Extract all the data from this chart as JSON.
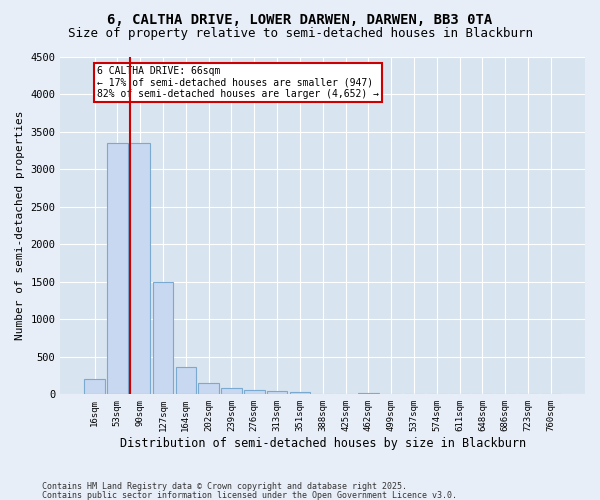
{
  "title1": "6, CALTHA DRIVE, LOWER DARWEN, DARWEN, BB3 0TA",
  "title2": "Size of property relative to semi-detached houses in Blackburn",
  "xlabel": "Distribution of semi-detached houses by size in Blackburn",
  "ylabel": "Number of semi-detached properties",
  "categories": [
    "16sqm",
    "53sqm",
    "90sqm",
    "127sqm",
    "164sqm",
    "202sqm",
    "239sqm",
    "276sqm",
    "313sqm",
    "351sqm",
    "388sqm",
    "425sqm",
    "462sqm",
    "499sqm",
    "537sqm",
    "574sqm",
    "611sqm",
    "648sqm",
    "686sqm",
    "723sqm",
    "760sqm"
  ],
  "values": [
    200,
    3350,
    3350,
    1500,
    360,
    150,
    90,
    60,
    40,
    25,
    0,
    0,
    20,
    0,
    0,
    0,
    0,
    0,
    0,
    0,
    0
  ],
  "bar_color": "#c8d8f0",
  "bar_edge_color": "#7aaad0",
  "property_line_x": 1.55,
  "annotation_text": "6 CALTHA DRIVE: 66sqm\n← 17% of semi-detached houses are smaller (947)\n82% of semi-detached houses are larger (4,652) →",
  "annotation_box_color": "#ffffff",
  "annotation_box_edge": "#cc0000",
  "red_line_color": "#cc0000",
  "background_color": "#e8eef8",
  "plot_bg_color": "#d8e4f0",
  "footer1": "Contains HM Land Registry data © Crown copyright and database right 2025.",
  "footer2": "Contains public sector information licensed under the Open Government Licence v3.0.",
  "ylim": [
    0,
    4500
  ],
  "title1_fontsize": 10,
  "title2_fontsize": 9,
  "tick_fontsize": 6.5,
  "ylabel_fontsize": 8,
  "xlabel_fontsize": 8.5
}
